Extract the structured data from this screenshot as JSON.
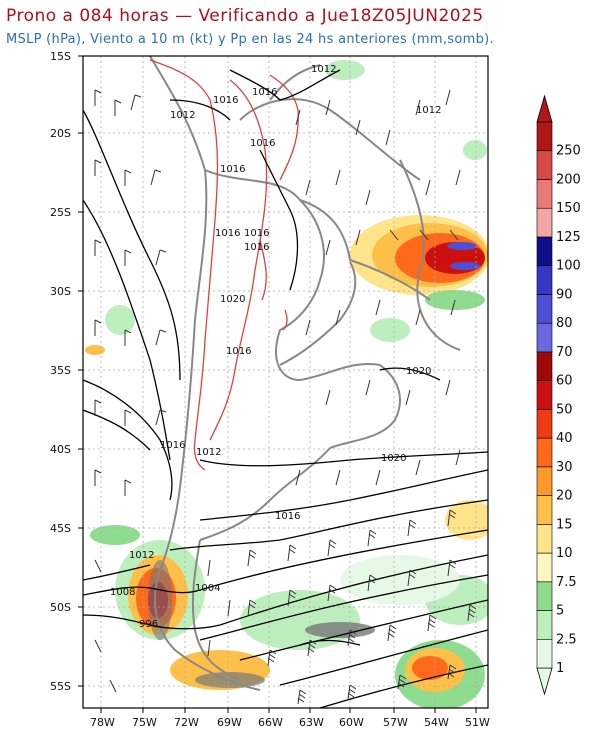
{
  "header": {
    "title": "Prono a 084 horas — Verificando a Jue18Z05JUN2025",
    "subtitle": "MSLP (hPa), Viento a 10 m (kt) y Pp en las 24 hs anteriores (mm,somb)."
  },
  "axes": {
    "lat_labels": [
      "15S",
      "20S",
      "25S",
      "30S",
      "35S",
      "40S",
      "45S",
      "50S",
      "55S"
    ],
    "lon_labels": [
      "78W",
      "75W",
      "72W",
      "69W",
      "66W",
      "63W",
      "60W",
      "57W",
      "54W",
      "51W"
    ]
  },
  "isobar_labels": [
    "1012",
    "1016",
    "1012",
    "1016",
    "1012",
    "1016",
    "1016",
    "1016",
    "1016",
    "1016",
    "1020",
    "1020",
    "1016",
    "1016",
    "1012",
    "1020",
    "1016",
    "1012",
    "1008",
    "1004",
    "996"
  ],
  "colorbar": {
    "labels": [
      "1",
      "2.5",
      "5",
      "7.5",
      "10",
      "15",
      "20",
      "30",
      "40",
      "50",
      "60",
      "70",
      "80",
      "90",
      "100",
      "125",
      "150",
      "200",
      "250"
    ],
    "colors": [
      "#e6f8e6",
      "#bdeebd",
      "#8fdc8f",
      "#fff6c0",
      "#ffe48a",
      "#ffc04a",
      "#ff9a2a",
      "#ff6a1a",
      "#f03a12",
      "#cc1010",
      "#a00808",
      "#6a6ae0",
      "#4f4fd6",
      "#3636c2",
      "#10108a",
      "#f4a6a6",
      "#ea7a7a",
      "#d84a4a",
      "#b01818"
    ]
  },
  "colors": {
    "title": "#b10f18",
    "subtitle": "#2d6fb7",
    "border": "#888888",
    "isobar": "#000000",
    "terrain": "#e04040"
  }
}
